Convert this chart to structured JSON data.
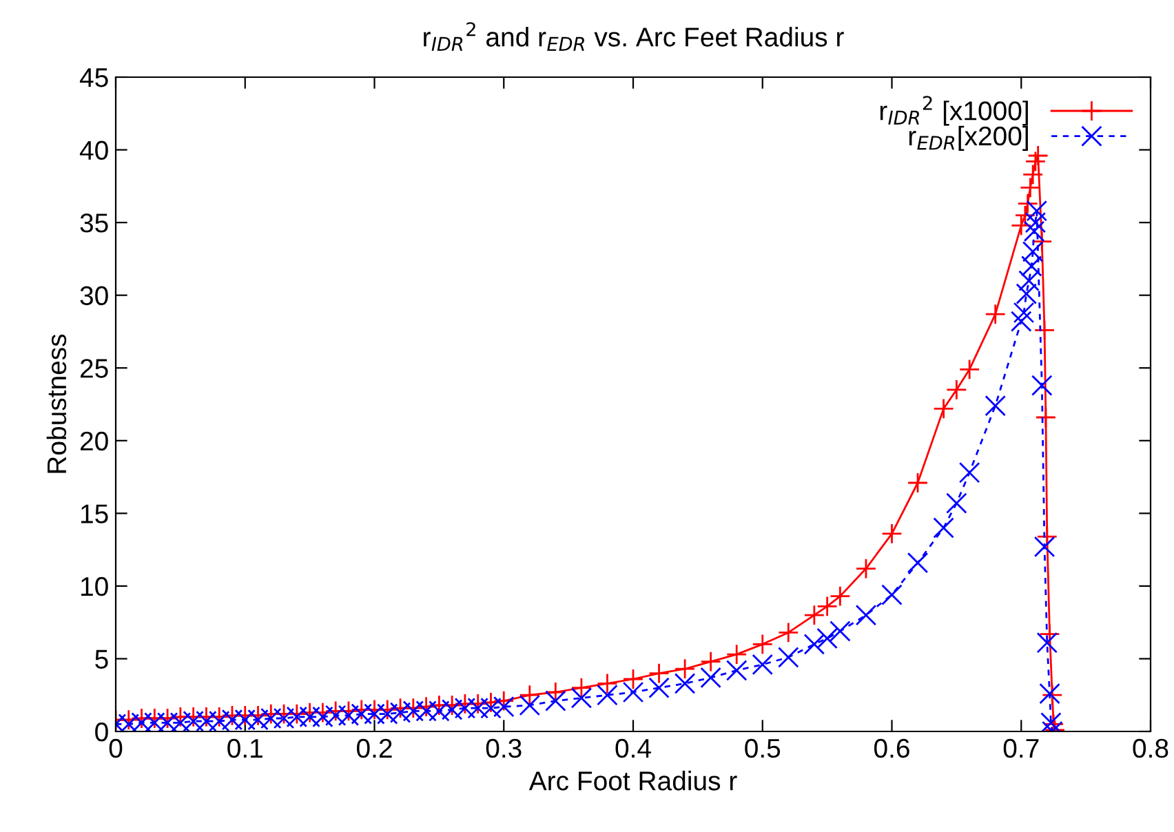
{
  "chart_data": {
    "type": "line",
    "title": "r$_{IDR}$$^{2}$ and r$_{EDR}$ vs. Arc Feet Radius r",
    "xlabel": "Arc Foot Radius r",
    "ylabel": "Robustness",
    "xlim": [
      0,
      0.8
    ],
    "xticks": [
      0,
      0.1,
      0.2,
      0.3,
      0.4,
      0.5,
      0.6,
      0.7,
      0.8
    ],
    "ylim": [
      0,
      45
    ],
    "yticks": [
      0,
      5,
      10,
      15,
      20,
      25,
      30,
      35,
      40,
      45
    ],
    "grid": false,
    "legend": "top right",
    "series": [
      {
        "name": "r$_{IDR}$$^{2}$ [x1000]",
        "color": "#ff0000",
        "marker": "plus",
        "line_style": "solid",
        "x": [
          0,
          0.01,
          0.02,
          0.03,
          0.04,
          0.05,
          0.06,
          0.07,
          0.08,
          0.09,
          0.1,
          0.11,
          0.12,
          0.13,
          0.14,
          0.15,
          0.16,
          0.17,
          0.18,
          0.19,
          0.2,
          0.21,
          0.22,
          0.23,
          0.24,
          0.25,
          0.26,
          0.27,
          0.28,
          0.29,
          0.3,
          0.32,
          0.34,
          0.36,
          0.38,
          0.4,
          0.42,
          0.44,
          0.46,
          0.48,
          0.5,
          0.52,
          0.54,
          0.55,
          0.56,
          0.58,
          0.6,
          0.62,
          0.64,
          0.65,
          0.66,
          0.68,
          0.7,
          0.703,
          0.705,
          0.707,
          0.709,
          0.711,
          0.713,
          0.716,
          0.718,
          0.719,
          0.72,
          0.722,
          0.724,
          0.725,
          0.726
        ],
        "values": [
          0.8,
          0.8,
          0.9,
          0.9,
          0.9,
          1.0,
          1.0,
          1.0,
          1.0,
          1.1,
          1.1,
          1.1,
          1.2,
          1.2,
          1.2,
          1.3,
          1.3,
          1.4,
          1.4,
          1.5,
          1.5,
          1.5,
          1.6,
          1.6,
          1.7,
          1.8,
          1.8,
          1.9,
          1.9,
          2.0,
          2.1,
          2.5,
          2.7,
          3.0,
          3.3,
          3.6,
          4.0,
          4.3,
          4.8,
          5.3,
          6.0,
          6.8,
          8.0,
          8.6,
          9.3,
          11.2,
          13.6,
          17.1,
          22.2,
          23.5,
          24.9,
          28.7,
          34.8,
          35.5,
          36.3,
          37.4,
          38.3,
          39.2,
          39.6,
          33.7,
          27.6,
          21.6,
          13.4,
          6.7,
          2.5,
          0.5,
          0.1
        ]
      },
      {
        "name": "r$_{EDR}$[x200]",
        "color": "#0000ff",
        "marker": "cross",
        "line_style": "dashed",
        "x": [
          0,
          0.01,
          0.02,
          0.03,
          0.04,
          0.05,
          0.06,
          0.07,
          0.08,
          0.09,
          0.1,
          0.11,
          0.12,
          0.13,
          0.14,
          0.15,
          0.16,
          0.17,
          0.18,
          0.19,
          0.2,
          0.21,
          0.22,
          0.23,
          0.24,
          0.25,
          0.26,
          0.27,
          0.28,
          0.29,
          0.3,
          0.32,
          0.34,
          0.36,
          0.38,
          0.4,
          0.42,
          0.44,
          0.46,
          0.48,
          0.5,
          0.52,
          0.54,
          0.55,
          0.56,
          0.58,
          0.6,
          0.62,
          0.64,
          0.65,
          0.66,
          0.68,
          0.7,
          0.702,
          0.704,
          0.706,
          0.708,
          0.709,
          0.71,
          0.711,
          0.712,
          0.716,
          0.718,
          0.72,
          0.722,
          0.723,
          0.724
        ],
        "values": [
          0.5,
          0.5,
          0.6,
          0.6,
          0.6,
          0.6,
          0.7,
          0.7,
          0.7,
          0.8,
          0.8,
          0.8,
          0.9,
          0.9,
          1.0,
          1.0,
          1.0,
          1.1,
          1.1,
          1.2,
          1.2,
          1.2,
          1.3,
          1.4,
          1.4,
          1.4,
          1.5,
          1.6,
          1.6,
          1.6,
          1.7,
          1.8,
          2.1,
          2.3,
          2.5,
          2.7,
          3.0,
          3.3,
          3.7,
          4.2,
          4.6,
          5.1,
          6.0,
          6.4,
          6.9,
          8.0,
          9.4,
          11.6,
          14.0,
          15.7,
          17.8,
          22.4,
          28.2,
          28.8,
          30.1,
          31.0,
          32.0,
          33.0,
          34.4,
          35.0,
          35.8,
          23.8,
          12.7,
          6.1,
          2.6,
          0.6,
          0.0
        ]
      }
    ]
  }
}
